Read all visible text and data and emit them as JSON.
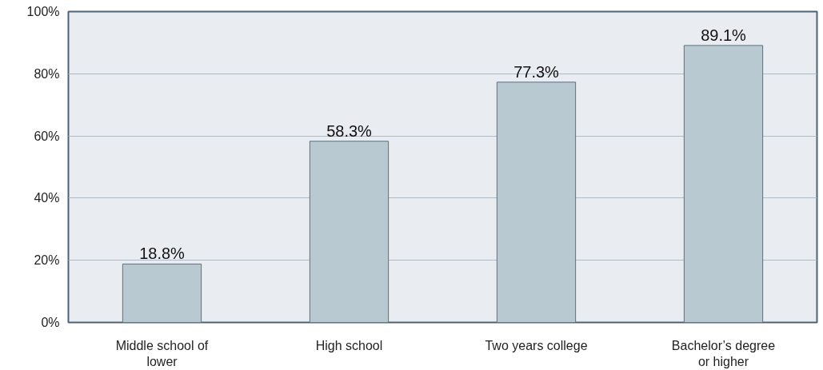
{
  "chart_data": {
    "type": "bar",
    "categories": [
      "Middle school of lower",
      "High school",
      "Two years college",
      "Bachelor’s degree or higher"
    ],
    "values": [
      18.8,
      58.3,
      77.3,
      89.1
    ],
    "value_labels": [
      "18.8%",
      "58.3%",
      "77.3%",
      "89.1%"
    ],
    "color": "#b8c9d1",
    "ylim": [
      0,
      100
    ],
    "yticks": [
      {
        "value": 0,
        "label": "0%"
      },
      {
        "value": 20,
        "label": "20%"
      },
      {
        "value": 40,
        "label": "40%"
      },
      {
        "value": 60,
        "label": "60%"
      },
      {
        "value": 80,
        "label": "80%"
      },
      {
        "value": 100,
        "label": "100%"
      }
    ],
    "grid": "y"
  }
}
